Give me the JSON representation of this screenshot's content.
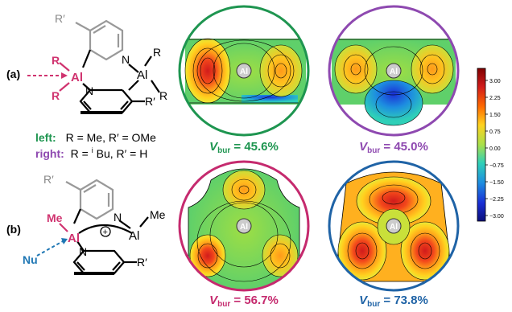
{
  "panels": {
    "a": {
      "label": "(a)",
      "mol": {
        "r_prime_top": "R′",
        "n_top": "N",
        "r_top": "R",
        "al_left": "Al",
        "r_left1": "R",
        "r_left2": "R",
        "al_right": "Al",
        "r_right": "R",
        "n_bottom": "N",
        "r_prime_bottom": "R′"
      },
      "legend": {
        "left_label": "left:",
        "left_text": "R = Me, R′ = OMe",
        "right_label": "right:",
        "right_text_pre": "R = ",
        "right_sup": "i",
        "right_text_post": "Bu, R′ = H"
      }
    },
    "b": {
      "label": "(b)",
      "mol": {
        "r_prime_top": "R′",
        "n_top": "N",
        "me_left": "Me",
        "me_right": "Me",
        "al_left": "Al",
        "al_right": "Al",
        "charge": "+",
        "nu": "Nu",
        "n_bottom": "N",
        "r_prime_bottom": "R′"
      }
    }
  },
  "maps": [
    {
      "ring_color": "#1e9550",
      "center_label": "Al",
      "vbur_symbol": "V",
      "vbur_sub": "bur",
      "vbur_value": " = 45.6%"
    },
    {
      "ring_color": "#8e49b0",
      "center_label": "Al",
      "vbur_symbol": "V",
      "vbur_sub": "bur",
      "vbur_value": " = 45.0%"
    },
    {
      "ring_color": "#c52a6e",
      "center_label": "Al",
      "vbur_symbol": "V",
      "vbur_sub": "bur",
      "vbur_value": " = 56.7%"
    },
    {
      "ring_color": "#1f63a6",
      "center_label": "Al",
      "vbur_symbol": "V",
      "vbur_sub": "bur",
      "vbur_value": " = 73.8%"
    }
  ],
  "colorbar": {
    "ticks": [
      "3.00",
      "2.25",
      "1.50",
      "0.75",
      "0.00",
      "−0.75",
      "−1.50",
      "−2.25",
      "−3.00"
    ],
    "stops": [
      "#7f0000",
      "#d11b1b",
      "#ff6a00",
      "#ffd21f",
      "#a9e04a",
      "#2fd0b8",
      "#1d8de0",
      "#1a2fd6",
      "#0b0f7a"
    ]
  },
  "colors": {
    "accent_green": "#1e9550",
    "accent_purple": "#8e49b0",
    "accent_pink": "#c52a6e",
    "accent_blue": "#1f63a6",
    "nu_blue": "#1f77b4"
  }
}
